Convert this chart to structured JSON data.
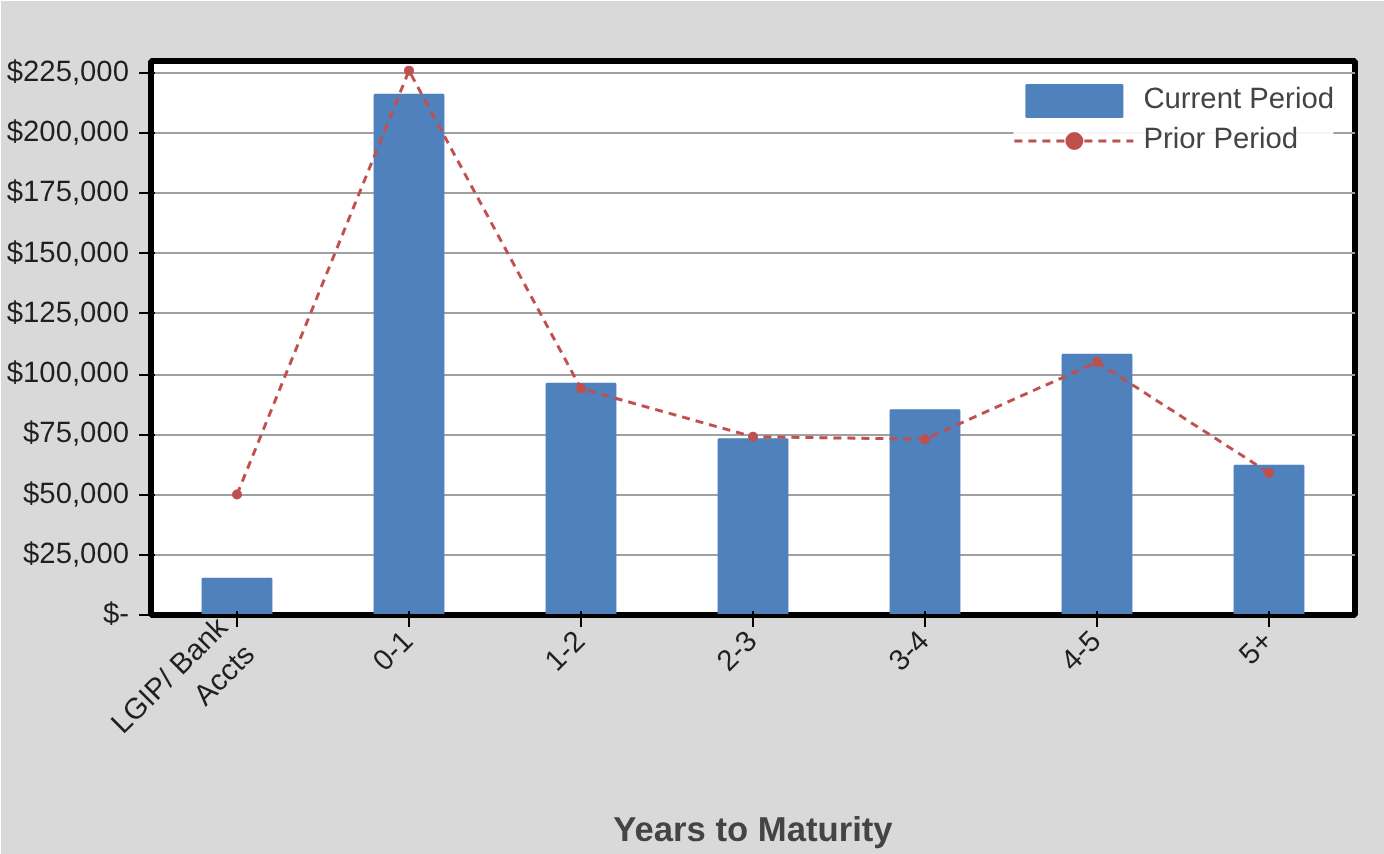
{
  "chart_data": {
    "type": "bar",
    "xlabel": "Years to Maturity",
    "categories": [
      "LGIP/ Bank\nAccts",
      "0-1",
      "1-2",
      "2-3",
      "3-4",
      "4-5",
      "5+"
    ],
    "series": [
      {
        "name": "Current Period",
        "color": "#4f81bd",
        "values": [
          15000,
          216000,
          96000,
          73000,
          85000,
          108000,
          62000
        ]
      },
      {
        "name": "Prior Period",
        "type": "line",
        "color": "#c0504d",
        "line_style": "dashed",
        "marker": "circle",
        "values": [
          50000,
          226000,
          94000,
          74000,
          73000,
          105000,
          59000
        ]
      }
    ],
    "ylim": [
      0,
      230000
    ],
    "yticks": [
      {
        "value": 0,
        "label": "$-"
      },
      {
        "value": 25000,
        "label": "$25,000"
      },
      {
        "value": 50000,
        "label": "$50,000"
      },
      {
        "value": 75000,
        "label": "$75,000"
      },
      {
        "value": 100000,
        "label": "$100,000"
      },
      {
        "value": 125000,
        "label": "$125,000"
      },
      {
        "value": 150000,
        "label": "$150,000"
      },
      {
        "value": 175000,
        "label": "$175,000"
      },
      {
        "value": 200000,
        "label": "$200,000"
      },
      {
        "value": 225000,
        "label": "$225,000"
      }
    ],
    "grid": "y",
    "legend": "top right"
  }
}
